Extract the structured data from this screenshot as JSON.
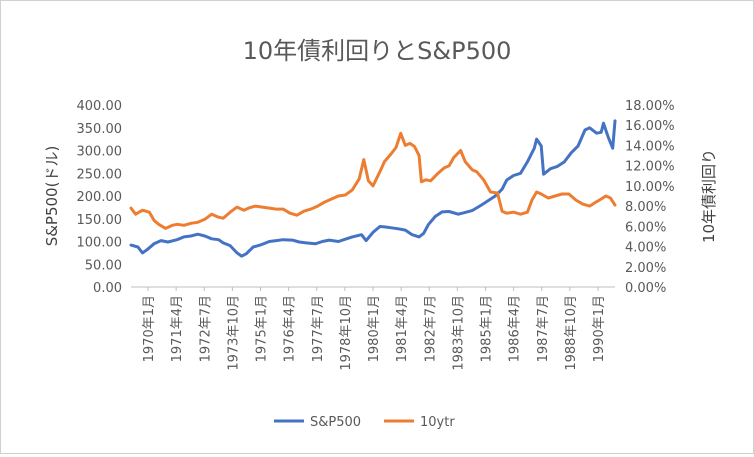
{
  "chart_data": {
    "type": "line",
    "title": "10年債利回りとS&P500",
    "ylabel": "S&P500(ドル)",
    "y2label": "10年債利回り",
    "ylim": [
      0,
      400
    ],
    "y2lim": [
      0,
      0.18
    ],
    "yticks": [
      "0.00",
      "50.00",
      "100.00",
      "150.00",
      "200.00",
      "250.00",
      "300.00",
      "350.00",
      "400.00"
    ],
    "y2ticks": [
      "0.00%",
      "2.00%",
      "4.00%",
      "6.00%",
      "8.00%",
      "10.00%",
      "12.00%",
      "14.00%",
      "16.00%",
      "18.00%"
    ],
    "xticks": [
      "1970年1月",
      "1971年4月",
      "1972年7月",
      "1973年10月",
      "1975年1月",
      "1976年4月",
      "1977年7月",
      "1978年10月",
      "1980年1月",
      "1981年4月",
      "1982年7月",
      "1983年10月",
      "1985年1月",
      "1986年4月",
      "1987年7月",
      "1988年10月",
      "1990年1月"
    ],
    "xlim": [
      1970.0,
      1991.0
    ],
    "grid": false,
    "legend": "bottom",
    "series": [
      {
        "name": "S&P500",
        "axis": "left",
        "color": "#4472C4",
        "x": [
          1970.0,
          1970.3,
          1970.5,
          1970.7,
          1971.0,
          1971.3,
          1971.6,
          1972.0,
          1972.3,
          1972.6,
          1972.9,
          1973.2,
          1973.5,
          1973.8,
          1974.0,
          1974.3,
          1974.6,
          1974.8,
          1975.0,
          1975.3,
          1975.6,
          1976.0,
          1976.3,
          1976.6,
          1977.0,
          1977.3,
          1977.6,
          1978.0,
          1978.3,
          1978.6,
          1979.0,
          1979.3,
          1979.6,
          1980.0,
          1980.2,
          1980.5,
          1980.8,
          1981.0,
          1981.3,
          1981.6,
          1981.9,
          1982.2,
          1982.5,
          1982.7,
          1982.9,
          1983.2,
          1983.5,
          1983.8,
          1984.2,
          1984.5,
          1984.8,
          1985.2,
          1985.5,
          1985.8,
          1986.1,
          1986.3,
          1986.6,
          1986.9,
          1987.2,
          1987.5,
          1987.6,
          1987.8,
          1987.9,
          1988.2,
          1988.5,
          1988.8,
          1989.1,
          1989.4,
          1989.7,
          1989.9,
          1990.2,
          1990.4,
          1990.5,
          1990.7,
          1990.9,
          1991.0
        ],
        "values": [
          92,
          88,
          75,
          82,
          95,
          102,
          99,
          104,
          110,
          112,
          116,
          112,
          106,
          104,
          97,
          91,
          75,
          68,
          73,
          88,
          92,
          100,
          102,
          104,
          103,
          99,
          97,
          95,
          100,
          103,
          100,
          105,
          110,
          115,
          102,
          120,
          133,
          132,
          130,
          128,
          125,
          115,
          110,
          118,
          137,
          155,
          165,
          166,
          160,
          164,
          168,
          180,
          190,
          200,
          215,
          235,
          245,
          250,
          275,
          305,
          325,
          310,
          248,
          260,
          265,
          275,
          295,
          310,
          345,
          350,
          338,
          340,
          360,
          330,
          305,
          365
        ]
      },
      {
        "name": "10ytr",
        "axis": "right",
        "color": "#ED7D31",
        "x": [
          1970.0,
          1970.2,
          1970.5,
          1970.8,
          1971.0,
          1971.2,
          1971.5,
          1971.8,
          1972.0,
          1972.3,
          1972.6,
          1972.9,
          1973.2,
          1973.5,
          1973.8,
          1974.0,
          1974.3,
          1974.6,
          1974.9,
          1975.1,
          1975.4,
          1975.7,
          1976.0,
          1976.3,
          1976.6,
          1976.9,
          1977.2,
          1977.5,
          1977.8,
          1978.1,
          1978.4,
          1978.7,
          1979.0,
          1979.3,
          1979.6,
          1979.9,
          1980.1,
          1980.3,
          1980.5,
          1980.8,
          1981.0,
          1981.3,
          1981.5,
          1981.7,
          1981.9,
          1982.1,
          1982.3,
          1982.5,
          1982.6,
          1982.8,
          1983.0,
          1983.3,
          1983.6,
          1983.8,
          1984.0,
          1984.3,
          1984.5,
          1984.8,
          1985.0,
          1985.3,
          1985.6,
          1985.9,
          1986.1,
          1986.3,
          1986.6,
          1986.9,
          1987.2,
          1987.4,
          1987.6,
          1987.8,
          1988.1,
          1988.4,
          1988.7,
          1989.0,
          1989.3,
          1989.6,
          1989.9,
          1990.1,
          1990.4,
          1990.6,
          1990.8,
          1991.0
        ],
        "values": [
          0.078,
          0.072,
          0.076,
          0.074,
          0.066,
          0.062,
          0.058,
          0.061,
          0.062,
          0.061,
          0.063,
          0.064,
          0.067,
          0.072,
          0.069,
          0.068,
          0.074,
          0.079,
          0.076,
          0.078,
          0.08,
          0.079,
          0.078,
          0.077,
          0.077,
          0.073,
          0.071,
          0.075,
          0.077,
          0.08,
          0.084,
          0.087,
          0.09,
          0.091,
          0.096,
          0.107,
          0.126,
          0.105,
          0.1,
          0.114,
          0.124,
          0.132,
          0.138,
          0.152,
          0.14,
          0.142,
          0.139,
          0.13,
          0.104,
          0.106,
          0.105,
          0.112,
          0.118,
          0.12,
          0.128,
          0.135,
          0.124,
          0.116,
          0.114,
          0.106,
          0.094,
          0.093,
          0.075,
          0.073,
          0.074,
          0.072,
          0.074,
          0.086,
          0.094,
          0.092,
          0.088,
          0.09,
          0.092,
          0.092,
          0.086,
          0.082,
          0.08,
          0.083,
          0.087,
          0.09,
          0.088,
          0.081
        ]
      }
    ]
  }
}
